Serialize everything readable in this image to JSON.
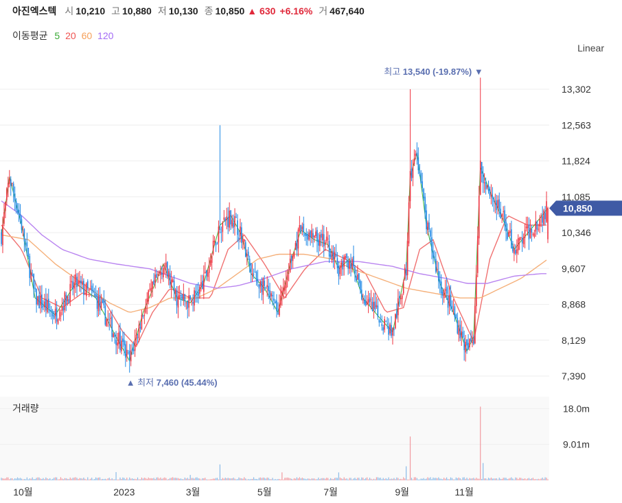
{
  "header": {
    "name": "아진엑스텍",
    "open_label": "시",
    "open": "10,210",
    "high_label": "고",
    "high": "10,880",
    "low_label": "저",
    "low": "10,130",
    "close_label": "종",
    "close": "10,850",
    "change": "▲ 630",
    "change_pct": "+6.16%",
    "volume_label": "거",
    "volume": "467,640"
  },
  "moving_average": {
    "label": "이동평균",
    "periods": [
      {
        "label": "5",
        "color": "#3aaa35"
      },
      {
        "label": "20",
        "color": "#ef5350"
      },
      {
        "label": "60",
        "color": "#f5a05a"
      },
      {
        "label": "120",
        "color": "#a36bf5"
      }
    ]
  },
  "scale_mode": "Linear",
  "colors": {
    "up": "#ef3340",
    "down": "#1e88e5",
    "grid": "#eeeeee",
    "price_tag": "#3f5aa5"
  },
  "chart_data": {
    "type": "candlestick",
    "y_ticks": [
      "13,302",
      "12,563",
      "11,824",
      "11,085",
      "10,346",
      "9,607",
      "8,868",
      "8,129",
      "7,390"
    ],
    "ylim": [
      7290,
      13900
    ],
    "x_ticks": [
      "10월",
      "2023",
      "3월",
      "5월",
      "7월",
      "9월",
      "11월"
    ],
    "current_price": "10,850",
    "max_annotation": {
      "label": "최고",
      "value": "13,540 (-19.87%)",
      "marker": "▼"
    },
    "min_annotation": {
      "label": "최저",
      "value": "7,460 (45.44%)",
      "marker": "▲"
    },
    "volume_panel": {
      "label": "거래량",
      "y_ticks": [
        "18.0m",
        "9.01m"
      ],
      "ylim_m": [
        0,
        21
      ]
    },
    "price_keypoints": [
      [
        0,
        10300
      ],
      [
        6,
        11500
      ],
      [
        15,
        10500
      ],
      [
        25,
        9000
      ],
      [
        40,
        8650
      ],
      [
        55,
        9300
      ],
      [
        70,
        9000
      ],
      [
        85,
        8200
      ],
      [
        95,
        7700
      ],
      [
        105,
        8700
      ],
      [
        120,
        9700
      ],
      [
        130,
        9000
      ],
      [
        140,
        8900
      ],
      [
        150,
        9300
      ],
      [
        162,
        10500
      ],
      [
        170,
        10700
      ],
      [
        178,
        10300
      ],
      [
        185,
        9500
      ],
      [
        195,
        9200
      ],
      [
        205,
        8700
      ],
      [
        215,
        9800
      ],
      [
        222,
        10400
      ],
      [
        232,
        10200
      ],
      [
        242,
        10100
      ],
      [
        250,
        9600
      ],
      [
        258,
        9800
      ],
      [
        268,
        9000
      ],
      [
        280,
        8600
      ],
      [
        290,
        8300
      ],
      [
        300,
        9600
      ],
      [
        303,
        11500
      ],
      [
        308,
        12000
      ],
      [
        315,
        10500
      ],
      [
        325,
        9300
      ],
      [
        335,
        8700
      ],
      [
        345,
        7900
      ],
      [
        350,
        8200
      ],
      [
        355,
        11700
      ],
      [
        362,
        11200
      ],
      [
        372,
        10600
      ],
      [
        380,
        10000
      ],
      [
        395,
        10500
      ],
      [
        405,
        10850
      ]
    ],
    "ma_keypoints": {
      "ma20": [
        [
          0,
          10500
        ],
        [
          15,
          10000
        ],
        [
          30,
          9000
        ],
        [
          45,
          8800
        ],
        [
          60,
          9100
        ],
        [
          75,
          9000
        ],
        [
          90,
          8300
        ],
        [
          100,
          8000
        ],
        [
          112,
          8700
        ],
        [
          125,
          9200
        ],
        [
          140,
          9000
        ],
        [
          155,
          9000
        ],
        [
          168,
          10000
        ],
        [
          180,
          10300
        ],
        [
          195,
          9700
        ],
        [
          210,
          9000
        ],
        [
          225,
          9600
        ],
        [
          240,
          10000
        ],
        [
          255,
          9800
        ],
        [
          270,
          9500
        ],
        [
          285,
          8700
        ],
        [
          298,
          8800
        ],
        [
          310,
          10000
        ],
        [
          320,
          10200
        ],
        [
          335,
          9000
        ],
        [
          350,
          8100
        ],
        [
          362,
          9800
        ],
        [
          375,
          10700
        ],
        [
          390,
          10500
        ],
        [
          405,
          10500
        ]
      ],
      "ma60": [
        [
          0,
          10300
        ],
        [
          20,
          10200
        ],
        [
          40,
          9700
        ],
        [
          60,
          9300
        ],
        [
          80,
          8900
        ],
        [
          95,
          8700
        ],
        [
          110,
          8800
        ],
        [
          125,
          9000
        ],
        [
          145,
          9000
        ],
        [
          160,
          9200
        ],
        [
          175,
          9500
        ],
        [
          190,
          9800
        ],
        [
          205,
          9900
        ],
        [
          225,
          9900
        ],
        [
          245,
          9800
        ],
        [
          260,
          9600
        ],
        [
          280,
          9400
        ],
        [
          300,
          9200
        ],
        [
          320,
          9100
        ],
        [
          340,
          9000
        ],
        [
          355,
          9000
        ],
        [
          370,
          9200
        ],
        [
          385,
          9400
        ],
        [
          395,
          9600
        ],
        [
          405,
          9800
        ]
      ],
      "ma120": [
        [
          0,
          11000
        ],
        [
          15,
          10700
        ],
        [
          30,
          10300
        ],
        [
          45,
          10000
        ],
        [
          65,
          9800
        ],
        [
          85,
          9700
        ],
        [
          110,
          9600
        ],
        [
          140,
          9300
        ],
        [
          160,
          9200
        ],
        [
          175,
          9250
        ],
        [
          195,
          9400
        ],
        [
          215,
          9600
        ],
        [
          240,
          9750
        ],
        [
          265,
          9750
        ],
        [
          290,
          9650
        ],
        [
          310,
          9500
        ],
        [
          330,
          9400
        ],
        [
          345,
          9300
        ],
        [
          360,
          9300
        ],
        [
          380,
          9450
        ],
        [
          400,
          9500
        ],
        [
          405,
          9500
        ]
      ]
    }
  }
}
